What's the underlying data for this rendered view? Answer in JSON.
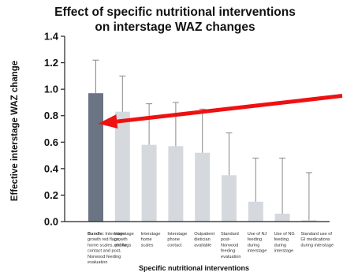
{
  "chart_data": {
    "type": "bar",
    "title": [
      "Effect of specific nutritional interventions",
      "on interstage WAZ changes"
    ],
    "ylabel": "Effective interstage WAZ change",
    "xlabel": "Specific nutritional interventions",
    "ylim": [
      0,
      1.4
    ],
    "yticks": [
      "0.0",
      "0.2",
      "0.4",
      "0.6",
      "0.8",
      "1.0",
      "1.2",
      "1.4"
    ],
    "grid": false,
    "categories": [
      {
        "lead": "Bundle:",
        "lines": [
          "Bundle: Interstage",
          "growth red flags,",
          "home scales, phone",
          "contact and post-",
          "Norwood feeding",
          "evaluation"
        ]
      },
      {
        "lines": [
          "Interstage",
          "growth",
          "red flags"
        ]
      },
      {
        "lines": [
          "Interstage",
          "home",
          "scales"
        ]
      },
      {
        "lines": [
          "Interstage",
          "phone",
          "contact"
        ]
      },
      {
        "lines": [
          "Outpatient",
          "dietician",
          "available"
        ]
      },
      {
        "lines": [
          "Standard",
          "post-",
          "Norwood",
          "feeding",
          "evaluation"
        ]
      },
      {
        "lines": [
          "Use of NJ",
          "feeding",
          "during",
          "interstage"
        ]
      },
      {
        "lines": [
          "Use of NG",
          "feeding",
          "during",
          "interstage"
        ]
      },
      {
        "lines": [
          "Standard use of",
          "GI medications",
          "during interstage"
        ]
      }
    ],
    "values": [
      0.97,
      0.83,
      0.58,
      0.57,
      0.52,
      0.35,
      0.15,
      0.06,
      0.01
    ],
    "error_upper": [
      1.22,
      1.1,
      0.89,
      0.9,
      0.85,
      0.67,
      0.48,
      0.48,
      0.37
    ],
    "colors": {
      "highlight_bar": "#6b7483",
      "bar": "#d5d9de",
      "error_bar": "#888888",
      "axis": "#222222",
      "arrow": "#ee1111"
    },
    "annotation": {
      "type": "arrow",
      "points_to_category": 0,
      "color": "#ee1111"
    }
  }
}
